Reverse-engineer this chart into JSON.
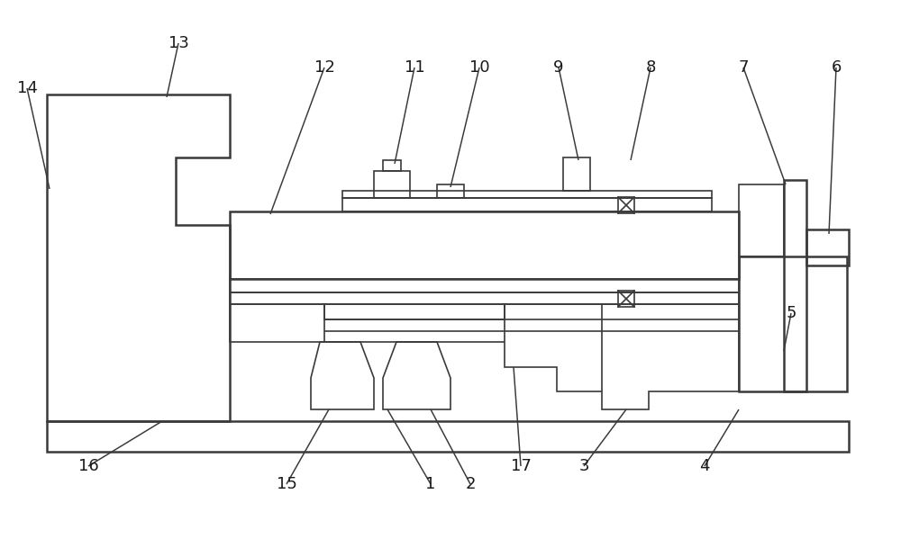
{
  "bg_color": "#ffffff",
  "line_color": "#3a3a3a",
  "lw_main": 1.8,
  "lw_thin": 1.2,
  "fig_width": 10.0,
  "fig_height": 5.99
}
